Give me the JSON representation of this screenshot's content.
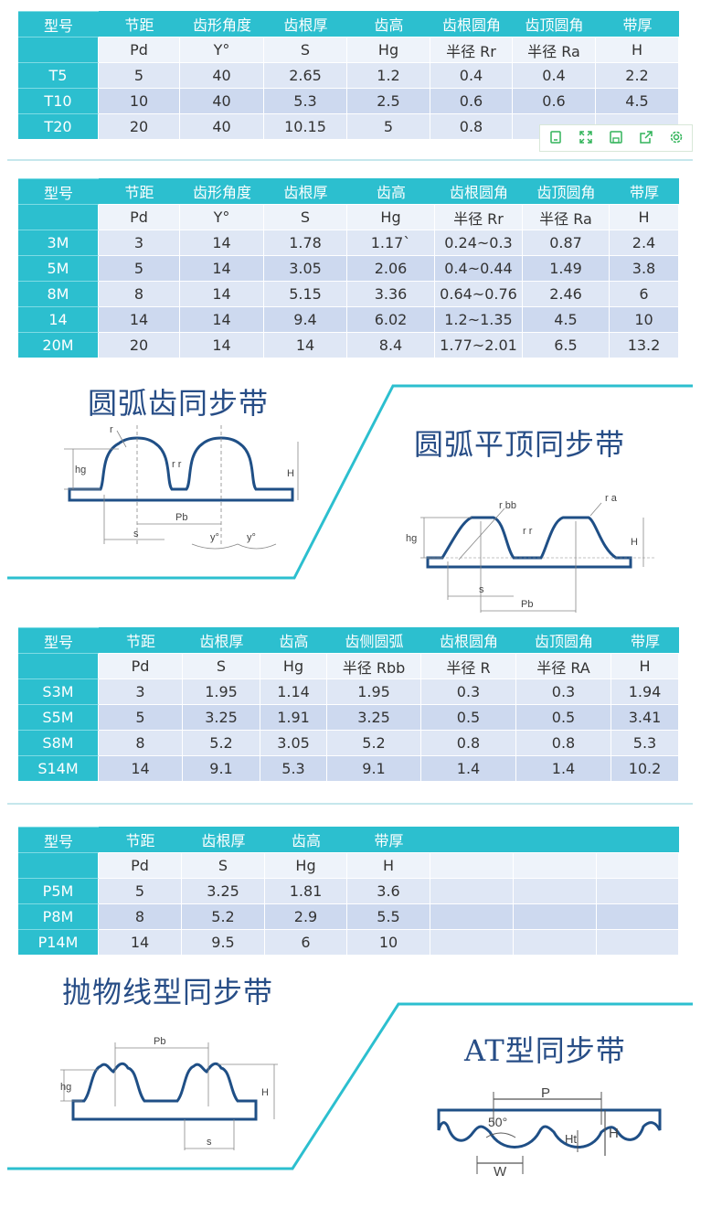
{
  "table1": {
    "headers": [
      "型号",
      "节距",
      "齿形角度",
      "齿根厚",
      "齿高",
      "齿根圆角",
      "齿顶圆角",
      "带厚"
    ],
    "subheaders": [
      "",
      "Pd",
      "Y°",
      "S",
      "Hg",
      "半径 Rr",
      "半径 Ra",
      "H"
    ],
    "rows": [
      [
        "T5",
        "5",
        "40",
        "2.65",
        "1.2",
        "0.4",
        "0.4",
        "2.2"
      ],
      [
        "T10",
        "10",
        "40",
        "5.3",
        "2.5",
        "0.6",
        "0.6",
        "4.5"
      ],
      [
        "T20",
        "20",
        "40",
        "10.15",
        "5",
        "0.8",
        "",
        ""
      ]
    ]
  },
  "toolbar": {
    "icons": [
      "copy-icon",
      "expand-icon",
      "save-icon",
      "share-icon",
      "settings-icon"
    ]
  },
  "table2": {
    "headers": [
      "型号",
      "节距",
      "齿形角度",
      "齿根厚",
      "齿高",
      "齿根圆角",
      "齿顶圆角",
      "带厚"
    ],
    "subheaders": [
      "",
      "Pd",
      "Y°",
      "S",
      "Hg",
      "半径 Rr",
      "半径 Ra",
      "H"
    ],
    "rows": [
      [
        "3M",
        "3",
        "14",
        "1.78",
        "1.17`",
        "0.24~0.3",
        "0.87",
        "2.4"
      ],
      [
        "5M",
        "5",
        "14",
        "3.05",
        "2.06",
        "0.4~0.44",
        "1.49",
        "3.8"
      ],
      [
        "8M",
        "8",
        "14",
        "5.15",
        "3.36",
        "0.64~0.76",
        "2.46",
        "6"
      ],
      [
        "14",
        "14",
        "14",
        "9.4",
        "6.02",
        "1.2~1.35",
        "4.5",
        "10"
      ],
      [
        "20M",
        "20",
        "14",
        "14",
        "8.4",
        "1.77~2.01",
        "6.5",
        "13.2"
      ]
    ]
  },
  "section1": {
    "title_left": "圆弧齿同步带",
    "title_right": "圆弧平顶同步带",
    "diag_left": {
      "hg": "hg",
      "H": "H",
      "Pb": "Pb",
      "s": "s",
      "y1": "y°",
      "y2": "y°",
      "rr": "r r",
      "ra": "r"
    },
    "diag_right": {
      "hg": "hg",
      "H": "H",
      "Pb": "Pb",
      "s": "s",
      "rbb": "r bb",
      "rr": "r r",
      "ra": "r a"
    }
  },
  "table3": {
    "headers": [
      "型号",
      "节距",
      "齿根厚",
      "齿高",
      "齿侧圆弧",
      "齿根圆角",
      "齿顶圆角",
      "带厚"
    ],
    "subheaders": [
      "",
      "Pd",
      "S",
      "Hg",
      "半径 Rbb",
      "半径 R",
      "半径 RA",
      "H"
    ],
    "rows": [
      [
        "S3M",
        "3",
        "1.95",
        "1.14",
        "1.95",
        "0.3",
        "0.3",
        "1.94"
      ],
      [
        "S5M",
        "5",
        "3.25",
        "1.91",
        "3.25",
        "0.5",
        "0.5",
        "3.41"
      ],
      [
        "S8M",
        "8",
        "5.2",
        "3.05",
        "5.2",
        "0.8",
        "0.8",
        "5.3"
      ],
      [
        "S14M",
        "14",
        "9.1",
        "5.3",
        "9.1",
        "1.4",
        "1.4",
        "10.2"
      ]
    ]
  },
  "table4": {
    "headers": [
      "型号",
      "节距",
      "齿根厚",
      "齿高",
      "带厚",
      "",
      "",
      ""
    ],
    "subheaders": [
      "",
      "Pd",
      "S",
      "Hg",
      "H",
      "",
      "",
      ""
    ],
    "rows": [
      [
        "P5M",
        "5",
        "3.25",
        "1.81",
        "3.6",
        "",
        "",
        ""
      ],
      [
        "P8M",
        "8",
        "5.2",
        "2.9",
        "5.5",
        "",
        "",
        ""
      ],
      [
        "P14M",
        "14",
        "9.5",
        "6",
        "10",
        "",
        "",
        ""
      ]
    ]
  },
  "section2": {
    "title_left": "抛物线型同步带",
    "title_right": "AT型同步带",
    "diag_left": {
      "hg": "hg",
      "H": "H",
      "Pb": "Pb",
      "s": "s"
    },
    "diag_right": {
      "P": "P",
      "angle": "50°",
      "Ht": "Ht",
      "H": "H",
      "W": "W"
    }
  },
  "colors": {
    "header": "#2cbfcf",
    "title": "#274d86",
    "row_a": "#dfe7f5",
    "row_b": "#cdd9ef",
    "accent_line": "#2cbfcf",
    "diagram": "#1f4f86"
  }
}
